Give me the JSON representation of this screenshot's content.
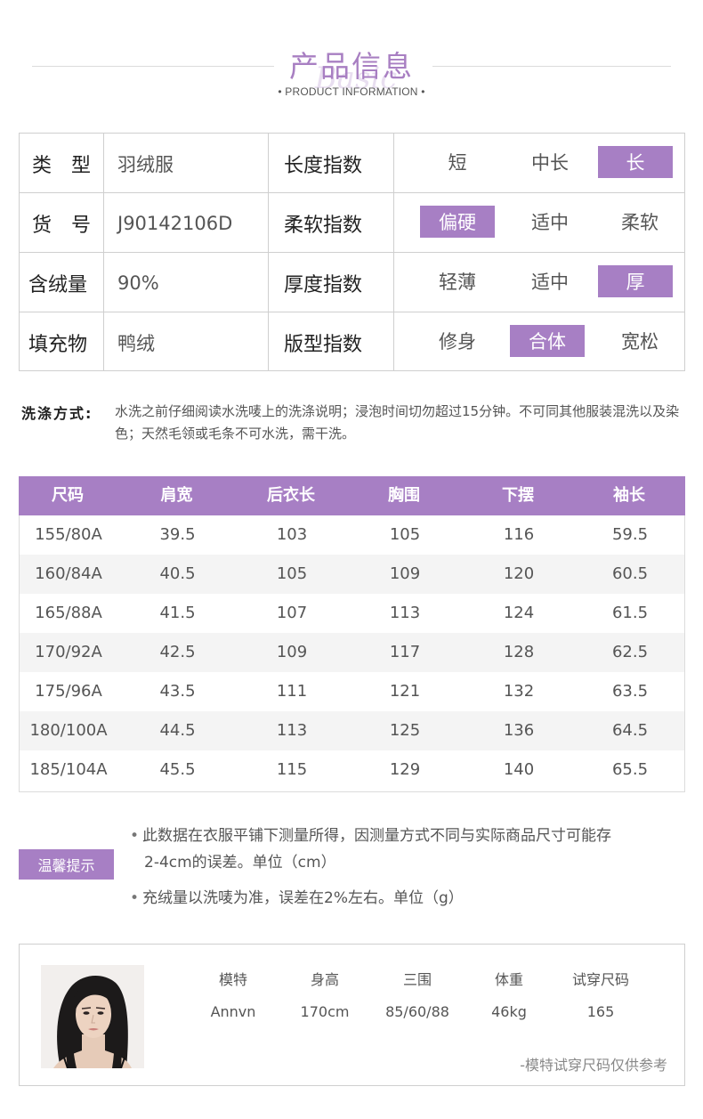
{
  "header": {
    "title": "产品信息",
    "script": "Basic",
    "subtitle": "• PRODUCT INFORMATION •"
  },
  "info": {
    "rows": [
      {
        "label": "类　型",
        "value": "羽绒服",
        "index": "长度指数",
        "options": [
          "短",
          "中长",
          "长"
        ],
        "selected": 2
      },
      {
        "label": "货　号",
        "value": "J90142106D",
        "index": "柔软指数",
        "options": [
          "偏硬",
          "适中",
          "柔软"
        ],
        "selected": 0
      },
      {
        "label": "含绒量",
        "value": "90%",
        "index": "厚度指数",
        "options": [
          "轻薄",
          "适中",
          "厚"
        ],
        "selected": 2
      },
      {
        "label": "填充物",
        "value": "鸭绒",
        "index": "版型指数",
        "options": [
          "修身",
          "合体",
          "宽松"
        ],
        "selected": 1
      }
    ]
  },
  "wash": {
    "label": "洗涤方式:",
    "text": "水洗之前仔细阅读水洗唛上的洗涤说明；浸泡时间切勿超过15分钟。不可同其他服装混洗以及染色；天然毛领或毛条不可水洗，需干洗。"
  },
  "size_table": {
    "headers": [
      "尺码",
      "肩宽",
      "后衣长",
      "胸围",
      "下摆",
      "袖长"
    ],
    "rows": [
      [
        "155/80A",
        "39.5",
        "103",
        "105",
        "116",
        "59.5"
      ],
      [
        "160/84A",
        "40.5",
        "105",
        "109",
        "120",
        "60.5"
      ],
      [
        "165/88A",
        "41.5",
        "107",
        "113",
        "124",
        "61.5"
      ],
      [
        "170/92A",
        "42.5",
        "109",
        "117",
        "128",
        "62.5"
      ],
      [
        "175/96A",
        "43.5",
        "111",
        "121",
        "132",
        "63.5"
      ],
      [
        "180/100A",
        "44.5",
        "113",
        "125",
        "136",
        "64.5"
      ],
      [
        "185/104A",
        "45.5",
        "115",
        "129",
        "140",
        "65.5"
      ]
    ]
  },
  "tips": {
    "badge": "温馨提示",
    "tip1_line1": "此数据在衣服平铺下测量所得，因测量方式不同与实际商品尺寸可能存",
    "tip1_line2": "2-4cm的误差。单位（cm）",
    "tip2": "充绒量以洗唛为准，误差在2%左右。单位（g）"
  },
  "model": {
    "headers": [
      "模特",
      "身高",
      "三围",
      "体重",
      "试穿尺码"
    ],
    "values": [
      "Annvn",
      "170cm",
      "85/60/88",
      "46kg",
      "165"
    ],
    "note": "-模特试穿尺码仅供参考"
  },
  "colors": {
    "accent": "#a77fc4",
    "title": "#a87fc2",
    "alt_row": "#f4f4f4"
  }
}
